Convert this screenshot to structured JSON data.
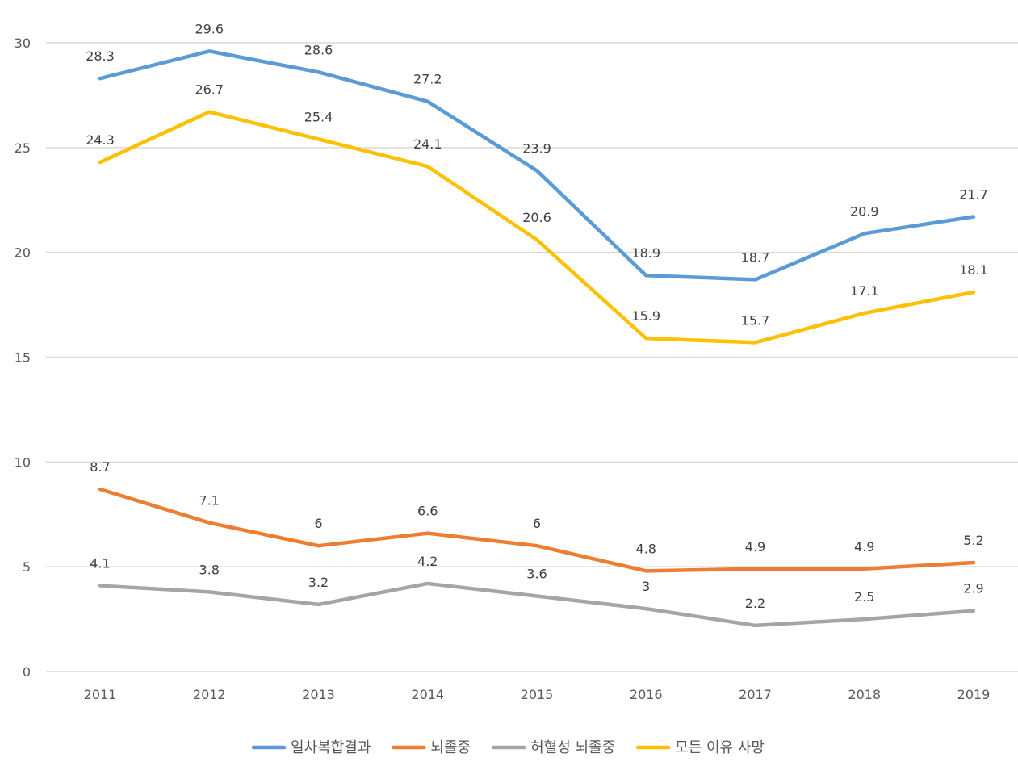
{
  "chart_data": {
    "type": "line",
    "title": "",
    "xlabel": "",
    "ylabel": "",
    "categories": [
      "2011",
      "2012",
      "2013",
      "2014",
      "2015",
      "2016",
      "2017",
      "2018",
      "2019"
    ],
    "ylim": [
      0,
      30
    ],
    "yticks": [
      "0",
      "5",
      "10",
      "15",
      "20",
      "25",
      "30"
    ],
    "grid": true,
    "legend_position": "bottom",
    "series": [
      {
        "name": "일차복합결과",
        "color": "#5b9bd5",
        "values": [
          28.3,
          29.6,
          28.6,
          27.2,
          23.9,
          18.9,
          18.7,
          20.9,
          21.7
        ],
        "labels": [
          "28.3",
          "29.6",
          "28.6",
          "27.2",
          "23.9",
          "18.9",
          "18.7",
          "20.9",
          "21.7"
        ]
      },
      {
        "name": "뇌졸중",
        "color": "#ed7d31",
        "values": [
          8.7,
          7.1,
          6,
          6.6,
          6,
          4.8,
          4.9,
          4.9,
          5.2
        ],
        "labels": [
          "8.7",
          "7.1",
          "6",
          "6.6",
          "6",
          "4.8",
          "4.9",
          "4.9",
          "5.2"
        ]
      },
      {
        "name": "허혈성 뇌졸중",
        "color": "#a5a5a5",
        "values": [
          4.1,
          3.8,
          3.2,
          4.2,
          3.6,
          3,
          2.2,
          2.5,
          2.9
        ],
        "labels": [
          "4.1",
          "3.8",
          "3.2",
          "4.2",
          "3.6",
          "3",
          "2.2",
          "2.5",
          "2.9"
        ]
      },
      {
        "name": "모든 이유 사망",
        "color": "#ffc000",
        "values": [
          24.3,
          26.7,
          25.4,
          24.1,
          20.6,
          15.9,
          15.7,
          17.1,
          18.1
        ],
        "labels": [
          "24.3",
          "26.7",
          "25.4",
          "24.1",
          "20.6",
          "15.9",
          "15.7",
          "17.1",
          "18.1"
        ]
      }
    ]
  }
}
